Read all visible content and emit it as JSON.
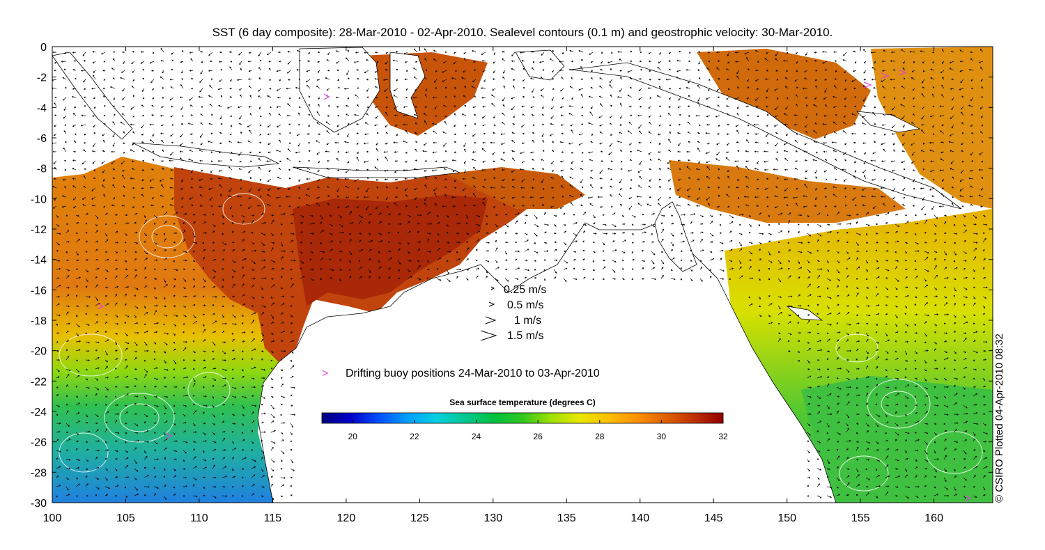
{
  "title": "SST (6 day composite): 28-Mar-2010 - 02-Apr-2010. Sealevel contours (0.1 m) and geostrophic velocity: 30-Mar-2010.",
  "axes": {
    "x_ticks": [
      "100",
      "105",
      "110",
      "115",
      "120",
      "125",
      "130",
      "135",
      "140",
      "145",
      "150",
      "155",
      "160"
    ],
    "y_ticks": [
      "0",
      "-2",
      "-4",
      "-6",
      "-8",
      "-10",
      "-12",
      "-14",
      "-16",
      "-18",
      "-20",
      "-22",
      "-24",
      "-26",
      "-28",
      "-30"
    ],
    "x_range": [
      100,
      164
    ],
    "y_range": [
      -30,
      0
    ]
  },
  "velocity_legend": [
    {
      "label": "0.25 m/s",
      "speed": 0.25
    },
    {
      "label": "0.5 m/s",
      "speed": 0.5
    },
    {
      "label": "1 m/s",
      "speed": 1
    },
    {
      "label": "1.5 m/s",
      "speed": 1.5
    }
  ],
  "buoy_legend": {
    "marker": ">",
    "label": "Drifting buoy positions 24-Mar-2010 to 03-Apr-2010",
    "color": "#e040e0"
  },
  "colorbar": {
    "title": "Sea surface temperature (degrees C)",
    "ticks": [
      "20",
      "22",
      "24",
      "26",
      "28",
      "30",
      "32"
    ],
    "range": [
      19,
      32
    ],
    "colors": [
      "#000080",
      "#0000c8",
      "#0050ff",
      "#00a0ff",
      "#00d0e0",
      "#00c890",
      "#00c040",
      "#30c820",
      "#a0e000",
      "#e8e800",
      "#ffc000",
      "#ff9000",
      "#e06000",
      "#c03000",
      "#900000"
    ]
  },
  "credit": "© CSIRO Plotted 04-Apr-2010 08:32",
  "colors": {
    "land": "#ffffff",
    "coast": "#000000",
    "contour": "#ffffff",
    "warm": "#c8500a",
    "hot": "#a82808",
    "orange": "#e0800a",
    "yellow": "#e6d800",
    "green": "#40c030",
    "teal": "#20b090",
    "blue": "#2090e0"
  }
}
